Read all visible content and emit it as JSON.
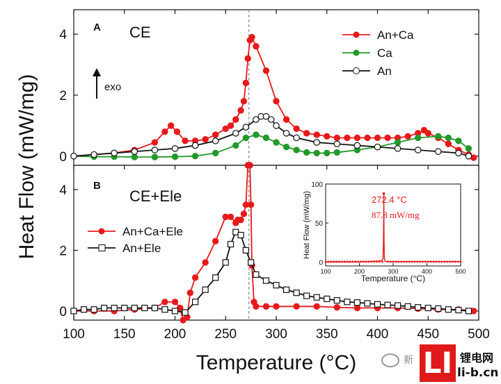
{
  "chart_data": [
    {
      "panel": "A",
      "type": "line",
      "panel_label": "A",
      "title": "CE",
      "annotation": "exo",
      "xlim": [
        100,
        500
      ],
      "ylim": [
        -0.3,
        4.8
      ],
      "yticks": [
        "0",
        "2",
        "4"
      ],
      "legend": {
        "position": "top-right"
      },
      "series": [
        {
          "name": "An+Ca",
          "color": "#e8191b",
          "marker": "filled-circle",
          "x": [
            100,
            120,
            140,
            160,
            180,
            190,
            196,
            202,
            210,
            220,
            230,
            240,
            250,
            255,
            260,
            265,
            268,
            270,
            272,
            274,
            276,
            280,
            290,
            300,
            310,
            320,
            330,
            340,
            350,
            360,
            370,
            380,
            390,
            400,
            410,
            420,
            430,
            440,
            446,
            450,
            460,
            470,
            480,
            490,
            495
          ],
          "y": [
            0.0,
            0.05,
            0.1,
            0.2,
            0.45,
            0.8,
            1.0,
            0.8,
            0.5,
            0.5,
            0.55,
            0.7,
            0.9,
            1.0,
            1.2,
            1.5,
            1.8,
            2.4,
            3.2,
            3.8,
            3.9,
            3.6,
            2.8,
            1.8,
            1.2,
            0.9,
            0.75,
            0.7,
            0.65,
            0.6,
            0.6,
            0.6,
            0.6,
            0.6,
            0.6,
            0.6,
            0.65,
            0.75,
            0.85,
            0.75,
            0.6,
            0.4,
            0.2,
            0.05,
            -0.05
          ]
        },
        {
          "name": "Ca",
          "color": "#22992a",
          "marker": "filled-circle",
          "x": [
            100,
            120,
            140,
            160,
            180,
            200,
            220,
            240,
            260,
            270,
            280,
            290,
            300,
            310,
            320,
            330,
            340,
            350,
            360,
            380,
            400,
            420,
            440,
            460,
            470,
            480,
            490
          ],
          "y": [
            0.0,
            -0.02,
            -0.02,
            -0.03,
            -0.03,
            -0.02,
            0.0,
            0.1,
            0.35,
            0.6,
            0.7,
            0.6,
            0.45,
            0.3,
            0.2,
            0.12,
            0.1,
            0.1,
            0.12,
            0.2,
            0.3,
            0.45,
            0.6,
            0.65,
            0.6,
            0.5,
            0.25
          ]
        },
        {
          "name": "An",
          "color": "#111111",
          "marker": "open-circle",
          "x": [
            100,
            120,
            140,
            160,
            180,
            200,
            220,
            240,
            260,
            270,
            280,
            285,
            290,
            295,
            300,
            310,
            320,
            340,
            360,
            380,
            400,
            420,
            440,
            460,
            480,
            490
          ],
          "y": [
            0.0,
            0.05,
            0.1,
            0.15,
            0.2,
            0.25,
            0.35,
            0.5,
            0.75,
            0.95,
            1.2,
            1.3,
            1.3,
            1.2,
            1.0,
            0.75,
            0.6,
            0.45,
            0.4,
            0.35,
            0.3,
            0.25,
            0.2,
            0.15,
            0.1,
            0.0
          ]
        }
      ]
    },
    {
      "panel": "B",
      "type": "line",
      "panel_label": "B",
      "title": "CE+Ele",
      "xlim": [
        100,
        500
      ],
      "ylim": [
        -0.3,
        4.8
      ],
      "yticks": [
        "0",
        "2",
        "4"
      ],
      "legend": {
        "position": "center-left"
      },
      "series": [
        {
          "name": "An+Ca+Ele",
          "color": "#e8191b",
          "marker": "filled-circle",
          "x": [
            100,
            120,
            140,
            160,
            180,
            190,
            200,
            205,
            208,
            210,
            212,
            215,
            220,
            230,
            240,
            250,
            255,
            260,
            262,
            265,
            268,
            270,
            272,
            273,
            274,
            275,
            276,
            278,
            280,
            290,
            300,
            320,
            340,
            360,
            380,
            400,
            420,
            440,
            460,
            480,
            495
          ],
          "y": [
            0.0,
            0.0,
            0.0,
            0.05,
            0.1,
            0.3,
            0.3,
            0.1,
            -0.3,
            -0.6,
            -0.2,
            0.6,
            1.1,
            1.6,
            2.3,
            3.1,
            3.1,
            2.9,
            3.0,
            3.0,
            3.2,
            3.5,
            4.8,
            4.8,
            4.8,
            3.5,
            1.5,
            0.3,
            0.15,
            0.15,
            0.15,
            0.15,
            0.15,
            0.12,
            0.1,
            0.1,
            0.1,
            0.08,
            0.05,
            0.05,
            0.0
          ]
        },
        {
          "name": "An+Ele",
          "color": "#111111",
          "marker": "open-square",
          "x": [
            100,
            110,
            120,
            130,
            140,
            150,
            160,
            170,
            180,
            190,
            200,
            210,
            220,
            230,
            240,
            250,
            255,
            260,
            265,
            270,
            275,
            280,
            290,
            300,
            310,
            320,
            330,
            340,
            350,
            360,
            370,
            380,
            390,
            400,
            410,
            420,
            430,
            440,
            450,
            460,
            470,
            480,
            490
          ],
          "y": [
            0.0,
            0.05,
            0.05,
            0.1,
            0.1,
            0.1,
            0.1,
            0.1,
            0.1,
            0.05,
            0.0,
            -0.05,
            0.3,
            0.7,
            1.1,
            1.6,
            2.2,
            2.6,
            2.5,
            2.0,
            1.6,
            1.2,
            1.0,
            0.85,
            0.7,
            0.6,
            0.5,
            0.45,
            0.4,
            0.35,
            0.3,
            0.28,
            0.25,
            0.22,
            0.2,
            0.18,
            0.15,
            0.12,
            0.1,
            0.08,
            0.05,
            0.03,
            0.0
          ]
        }
      ]
    },
    {
      "panel": "inset",
      "type": "line",
      "ylabel": "Heat Flow (mW/mg)",
      "xlabel": "Temperature (°C)",
      "xlim": [
        100,
        500
      ],
      "ylim": [
        -5,
        100
      ],
      "xticks": [
        "100",
        "200",
        "300",
        "400",
        "500"
      ],
      "yticks": [
        "0",
        "50",
        "100"
      ],
      "annotations": [
        "272.4 °C",
        "87.8 mW/mg"
      ],
      "series": [
        {
          "color": "#e8191b",
          "marker": "small-dot",
          "x": [
            100,
            120,
            140,
            160,
            180,
            200,
            220,
            240,
            260,
            265,
            270,
            271,
            272,
            272.4,
            273,
            274,
            276,
            280,
            300,
            320,
            340,
            360,
            380,
            400,
            420,
            440,
            460,
            480,
            500
          ],
          "y": [
            0,
            0,
            0,
            0,
            0,
            0,
            0.5,
            1,
            1.5,
            2,
            4,
            20,
            60,
            87.8,
            30,
            5,
            1,
            0.5,
            0.5,
            0.5,
            0.5,
            0.5,
            0.5,
            0.5,
            0.5,
            0.5,
            0.5,
            0.5,
            0.5
          ]
        }
      ]
    }
  ],
  "shared_axes": {
    "xlabel": "Temperature (°C)",
    "ylabel": "Heat Flow (mW/mg)",
    "xticks": [
      "100",
      "150",
      "200",
      "250",
      "300",
      "350",
      "400",
      "450",
      "500"
    ],
    "reference_line_x": 273
  },
  "watermark": {
    "wechat_text": "新",
    "logo_letters": "LI",
    "brand_cn": "锂电网",
    "brand_url": "li-b.cn"
  }
}
